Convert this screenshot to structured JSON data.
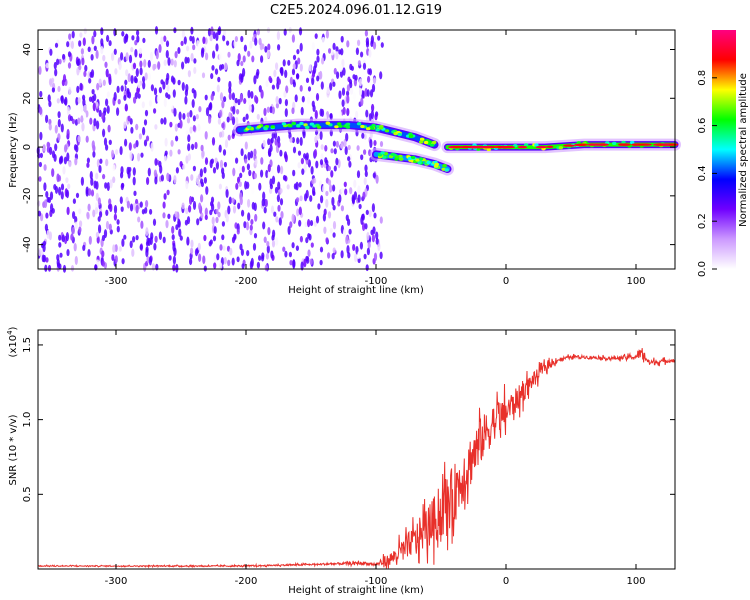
{
  "figure": {
    "title": "C2E5.2024.096.01.12.G19"
  },
  "chart_data": [
    {
      "type": "heatmap",
      "xlabel": "Height of straight line (km)",
      "ylabel": "Frequency (Hz)",
      "xlim": [
        -360,
        130
      ],
      "ylim": [
        -50,
        48
      ],
      "xticks": [
        "-300",
        "-200",
        "-100",
        "0",
        "100"
      ],
      "yticks": [
        "40",
        "20",
        "0",
        "-20",
        "-40"
      ],
      "colorbar": {
        "label": "Normalized spectral amplitude",
        "range": [
          0.0,
          1.0
        ],
        "ticks": [
          "0.0",
          "0.2",
          "0.4",
          "0.6",
          "0.8"
        ],
        "colors": [
          "#ffffff",
          "#cc99ff",
          "#7000ff",
          "#0000ff",
          "#00ffff",
          "#00ff00",
          "#ffff00",
          "#ff0000",
          "#ff0080"
        ]
      },
      "regions": [
        {
          "name": "noise",
          "x_range": [
            -360,
            -95
          ],
          "y_range": [
            -50,
            48
          ],
          "amplitude": 0.25
        },
        {
          "name": "upper-branch",
          "points": [
            [
              -205,
              7
            ],
            [
              -185,
              8
            ],
            [
              -160,
              9
            ],
            [
              -140,
              9
            ],
            [
              -120,
              9
            ],
            [
              -100,
              8
            ],
            [
              -85,
              6
            ],
            [
              -70,
              4
            ],
            [
              -55,
              1
            ]
          ],
          "amplitude": 0.55
        },
        {
          "name": "lower-branch",
          "points": [
            [
              -100,
              -3
            ],
            [
              -85,
              -4
            ],
            [
              -70,
              -5
            ],
            [
              -55,
              -7
            ],
            [
              -45,
              -9
            ]
          ],
          "amplitude": 0.6
        },
        {
          "name": "carrier",
          "points": [
            [
              -45,
              0
            ],
            [
              -20,
              0
            ],
            [
              0,
              0
            ],
            [
              30,
              0
            ],
            [
              60,
              1
            ],
            [
              90,
              1
            ],
            [
              130,
              1
            ]
          ],
          "amplitude": 0.85
        }
      ]
    },
    {
      "type": "line",
      "xlabel": "Height of straight line (km)",
      "ylabel": "SNR (10 * v/v)",
      "scale_label": "(x10",
      "scale_exp": "4",
      "xlim": [
        -360,
        130
      ],
      "ylim": [
        0,
        1.6
      ],
      "xticks": [
        "-300",
        "-200",
        "-100",
        "0",
        "100"
      ],
      "yticks": [
        "1.5",
        "1.0",
        "0.5"
      ],
      "color": "#e8302a",
      "series": [
        {
          "x": [
            -360,
            -300,
            -200,
            -150,
            -110,
            -100,
            -90,
            -80,
            -70,
            -60,
            -50,
            -40,
            -30,
            -20,
            -10,
            0,
            10,
            20,
            30,
            40,
            50,
            60,
            80,
            100,
            105,
            110,
            130
          ],
          "y": [
            0.02,
            0.02,
            0.02,
            0.03,
            0.04,
            0.03,
            0.06,
            0.12,
            0.2,
            0.28,
            0.38,
            0.5,
            0.68,
            0.85,
            0.98,
            1.05,
            1.15,
            1.26,
            1.35,
            1.4,
            1.42,
            1.42,
            1.41,
            1.42,
            1.45,
            1.38,
            1.4
          ],
          "noise": [
            0.003,
            0.003,
            0.004,
            0.005,
            0.01,
            0.01,
            0.04,
            0.07,
            0.1,
            0.14,
            0.18,
            0.2,
            0.18,
            0.16,
            0.12,
            0.1,
            0.08,
            0.05,
            0.03,
            0.015,
            0.01,
            0.01,
            0.01,
            0.015,
            0.04,
            0.02,
            0.01
          ]
        }
      ]
    }
  ]
}
